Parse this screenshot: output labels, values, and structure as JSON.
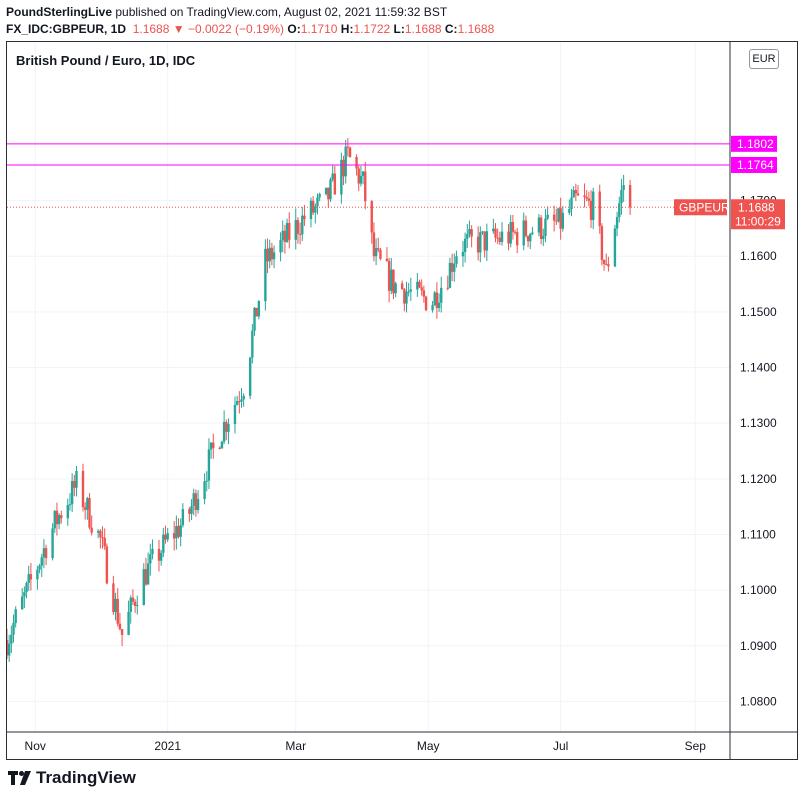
{
  "header": {
    "author": "PoundSterlingLive",
    "published": "published on TradingView.com, August 02, 2021 11:59:32 BST"
  },
  "quote": {
    "symbol": "FX_IDC:GBPEUR, 1D",
    "last": "1.1688",
    "arrow": "▼",
    "change": "−0.0022 (−0.19%)",
    "open_label": "O:",
    "open": "1.1710",
    "high_label": "H:",
    "high": "1.1722",
    "low_label": "L:",
    "low": "1.1688",
    "close_label": "C:",
    "close": "1.1688"
  },
  "chart": {
    "title": "British Pound / Euro, 1D, IDC",
    "currency": "EUR",
    "symbol_tag": "GBPEUR",
    "price_tag": "1.1688",
    "countdown": "11:00:29"
  },
  "footer": {
    "logo_text": "TradingView"
  },
  "colors": {
    "up": "#26a69a",
    "down": "#ef5350",
    "level": "#ff00ff",
    "grid": "#f0f3fa",
    "text": "#131722",
    "axis_border": "#2a2e39"
  },
  "chart_data": {
    "type": "candlestick",
    "title": "British Pound / Euro, 1D, IDC",
    "symbol": "GBPEUR",
    "ylim": [
      1.0745,
      1.1985
    ],
    "y_ticks": [
      "1.0800",
      "1.0900",
      "1.1000",
      "1.1100",
      "1.1200",
      "1.1300",
      "1.1400",
      "1.1500",
      "1.1600",
      "1.1700"
    ],
    "x_ticks": [
      "Nov",
      "2021",
      "Mar",
      "May",
      "Jul",
      "Sep"
    ],
    "x_tick_dates": [
      "2020-11-01",
      "2021-01-01",
      "2021-03-01",
      "2021-05-01",
      "2021-07-01",
      "2021-09-01"
    ],
    "date_range": [
      "2020-10-19",
      "2021-09-17"
    ],
    "last_date": "2021-08-02",
    "horizontal_levels": [
      {
        "value": 1.1802,
        "label": "1.1802",
        "color": "#ff00ff"
      },
      {
        "value": 1.1764,
        "label": "1.1764",
        "color": "#ff00ff"
      }
    ],
    "current_price": {
      "value": 1.1688,
      "label": "1.1688"
    },
    "price_path": [
      [
        "2020-10-19",
        1.091
      ],
      [
        "2020-11-10",
        1.112
      ],
      [
        "2020-11-20",
        1.119
      ],
      [
        "2020-12-01",
        1.109
      ],
      [
        "2020-12-11",
        1.092
      ],
      [
        "2020-12-20",
        1.102
      ],
      [
        "2021-01-01",
        1.109
      ],
      [
        "2021-01-10",
        1.113
      ],
      [
        "2021-01-25",
        1.128
      ],
      [
        "2021-02-05",
        1.137
      ],
      [
        "2021-02-15",
        1.159
      ],
      [
        "2021-02-22",
        1.162
      ],
      [
        "2021-03-05",
        1.167
      ],
      [
        "2021-03-15",
        1.17
      ],
      [
        "2021-03-25",
        1.178
      ],
      [
        "2021-04-01",
        1.173
      ],
      [
        "2021-04-06",
        1.16
      ],
      [
        "2021-04-15",
        1.155
      ],
      [
        "2021-04-25",
        1.153
      ],
      [
        "2021-05-03",
        1.152
      ],
      [
        "2021-05-10",
        1.157
      ],
      [
        "2021-05-15",
        1.162
      ],
      [
        "2021-06-01",
        1.163
      ],
      [
        "2021-06-20",
        1.165
      ],
      [
        "2021-07-01",
        1.166
      ],
      [
        "2021-07-08",
        1.17
      ],
      [
        "2021-07-16",
        1.169
      ],
      [
        "2021-07-22",
        1.157
      ],
      [
        "2021-07-26",
        1.166
      ],
      [
        "2021-07-30",
        1.173
      ],
      [
        "2021-08-02",
        1.1688
      ]
    ]
  }
}
